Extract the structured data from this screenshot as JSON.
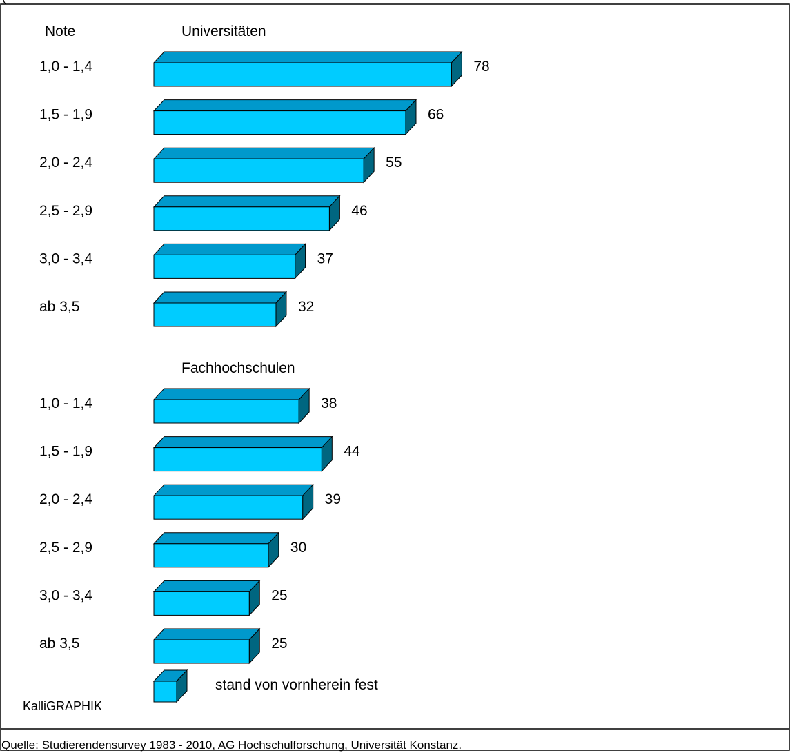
{
  "header_partial": "(",
  "column_header": "Note",
  "brand": "KalliGRAPHIK",
  "source": "Quelle: Studierendensurvey 1983 - 2010, AG Hochschulforschung, Universität Konstanz.",
  "colors": {
    "bar_front": "#00ccff",
    "bar_top": "#0099cc",
    "bar_side": "#006680",
    "outline": "#000000"
  },
  "chart_data": {
    "type": "bar",
    "orientation": "horizontal",
    "legend": [
      {
        "label": "stand von vornherein fest",
        "placement": "bottom"
      }
    ],
    "groups": [
      {
        "title": "Universitäten",
        "categories": [
          "1,0 - 1,4",
          "1,5 - 1,9",
          "2,0 - 2,4",
          "2,5 - 2,9",
          "3,0 - 3,4",
          "ab 3,5"
        ],
        "values": [
          78,
          66,
          55,
          46,
          37,
          32
        ]
      },
      {
        "title": "Fachhochschulen",
        "categories": [
          "1,0 - 1,4",
          "1,5 - 1,9",
          "2,0 - 2,4",
          "2,5 - 2,9",
          "3,0 - 3,4",
          "ab 3,5"
        ],
        "values": [
          38,
          44,
          39,
          30,
          25,
          25
        ]
      }
    ]
  }
}
